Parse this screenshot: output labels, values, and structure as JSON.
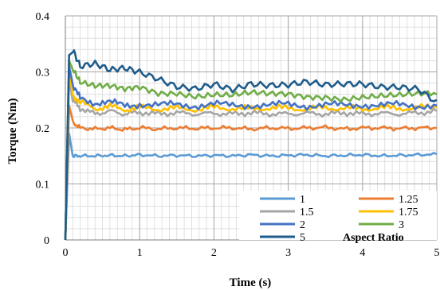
{
  "chart_data": {
    "type": "line",
    "title": "",
    "xlabel": "Time (s)",
    "ylabel": "Torque (Nm)",
    "xlim": [
      0,
      5
    ],
    "ylim": [
      0,
      0.4
    ],
    "x_ticks": [
      "0",
      "1",
      "2",
      "3",
      "4",
      "5"
    ],
    "y_ticks": [
      "0",
      "0.1",
      "0.2",
      "0.3",
      "0.4"
    ],
    "grid": "major and minor",
    "legend_title": "Aspect Ratio",
    "legend_position": "bottom-right",
    "x": [
      0,
      0.05,
      0.1,
      0.2,
      0.4,
      0.6,
      0.8,
      1.0,
      1.25,
      1.5,
      1.75,
      2.0,
      2.25,
      2.5,
      2.75,
      3.0,
      3.25,
      3.5,
      3.75,
      4.0,
      4.25,
      4.5,
      4.75,
      5.0
    ],
    "series": [
      {
        "name": "1",
        "color": "#5B9BD5",
        "values": [
          0,
          0.19,
          0.15,
          0.15,
          0.15,
          0.151,
          0.15,
          0.152,
          0.15,
          0.151,
          0.15,
          0.151,
          0.15,
          0.152,
          0.15,
          0.151,
          0.152,
          0.15,
          0.151,
          0.152,
          0.15,
          0.151,
          0.152,
          0.153
        ]
      },
      {
        "name": "1.25",
        "color": "#ED7D31",
        "values": [
          0,
          0.24,
          0.21,
          0.2,
          0.198,
          0.2,
          0.197,
          0.2,
          0.198,
          0.2,
          0.199,
          0.2,
          0.2,
          0.198,
          0.2,
          0.199,
          0.2,
          0.201,
          0.198,
          0.2,
          0.2,
          0.199,
          0.2,
          0.2
        ]
      },
      {
        "name": "1.5",
        "color": "#A5A5A5",
        "values": [
          0,
          0.29,
          0.25,
          0.235,
          0.225,
          0.23,
          0.225,
          0.228,
          0.225,
          0.227,
          0.225,
          0.226,
          0.225,
          0.227,
          0.225,
          0.225,
          0.226,
          0.225,
          0.227,
          0.225,
          0.226,
          0.225,
          0.227,
          0.23
        ]
      },
      {
        "name": "1.75",
        "color": "#FFC000",
        "values": [
          0,
          0.3,
          0.26,
          0.245,
          0.235,
          0.238,
          0.233,
          0.236,
          0.234,
          0.235,
          0.233,
          0.236,
          0.235,
          0.234,
          0.236,
          0.235,
          0.234,
          0.236,
          0.235,
          0.234,
          0.236,
          0.235,
          0.236,
          0.237
        ]
      },
      {
        "name": "2",
        "color": "#4472C4",
        "values": [
          0,
          0.31,
          0.27,
          0.255,
          0.245,
          0.245,
          0.24,
          0.243,
          0.24,
          0.242,
          0.24,
          0.242,
          0.24,
          0.241,
          0.24,
          0.242,
          0.24,
          0.241,
          0.24,
          0.242,
          0.24,
          0.241,
          0.24,
          0.24
        ]
      },
      {
        "name": "3",
        "color": "#70AD47",
        "values": [
          0,
          0.32,
          0.31,
          0.285,
          0.275,
          0.272,
          0.265,
          0.27,
          0.262,
          0.265,
          0.26,
          0.262,
          0.258,
          0.26,
          0.257,
          0.258,
          0.256,
          0.258,
          0.255,
          0.257,
          0.256,
          0.255,
          0.257,
          0.26
        ]
      },
      {
        "name": "5",
        "color": "#1F5C8B",
        "values": [
          0,
          0.33,
          0.335,
          0.305,
          0.31,
          0.3,
          0.305,
          0.3,
          0.29,
          0.278,
          0.275,
          0.283,
          0.272,
          0.28,
          0.275,
          0.274,
          0.278,
          0.272,
          0.274,
          0.275,
          0.272,
          0.274,
          0.273,
          0.25
        ]
      }
    ]
  }
}
